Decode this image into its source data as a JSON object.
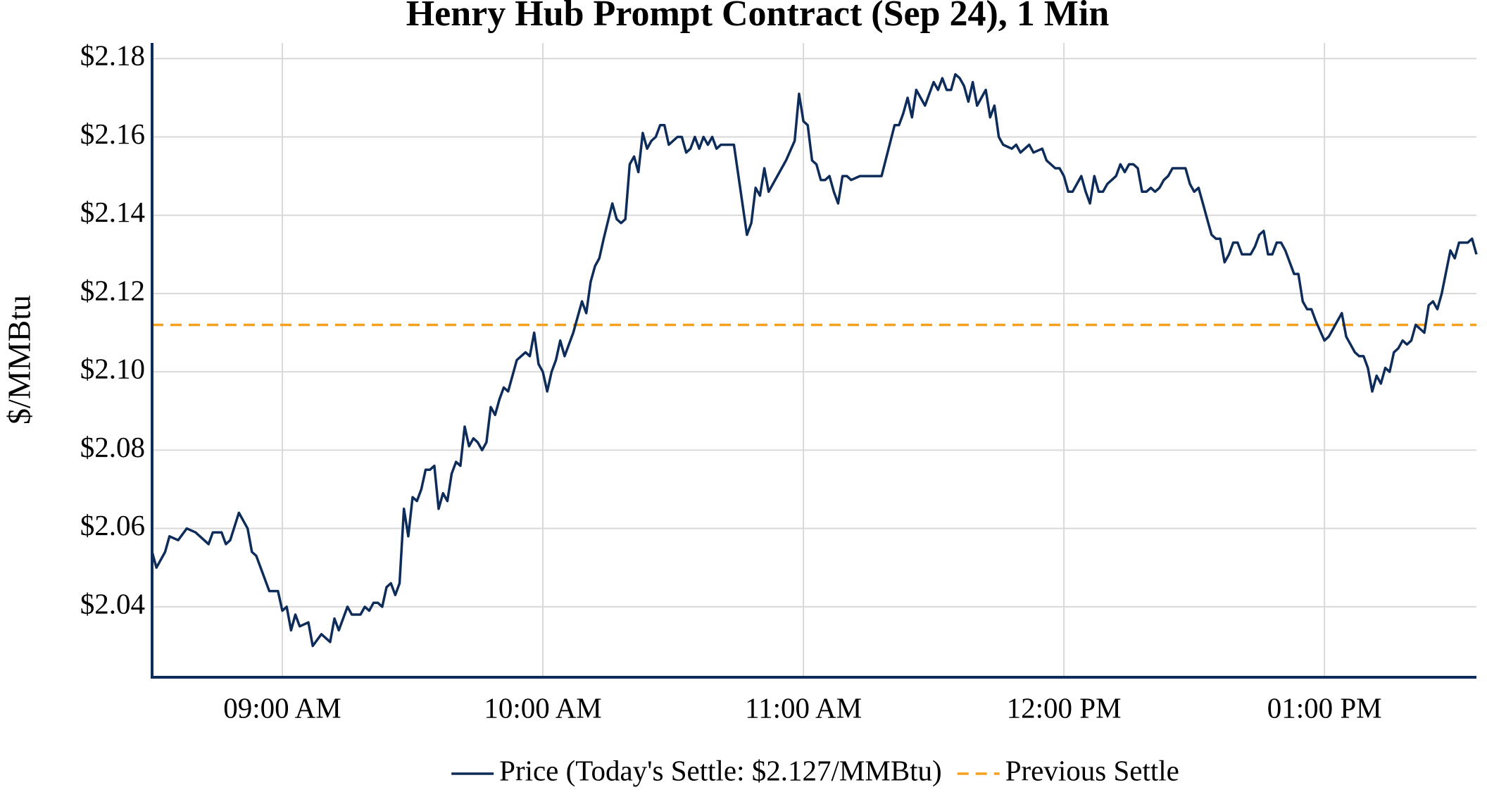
{
  "chart_data": {
    "type": "line",
    "title": "Henry Hub Prompt Contract (Sep 24), 1 Min",
    "y_label": "$/MMBtu",
    "xlim": [
      "08:30",
      "13:35"
    ],
    "xticks": [
      {
        "value": "09:00",
        "label": "09:00 AM"
      },
      {
        "value": "10:00",
        "label": "10:00 AM"
      },
      {
        "value": "11:00",
        "label": "11:00 AM"
      },
      {
        "value": "12:00",
        "label": "12:00 PM"
      },
      {
        "value": "13:00",
        "label": "01:00 PM"
      }
    ],
    "ylim": [
      2.022,
      2.184
    ],
    "yticks": [
      {
        "value": 2.04,
        "label": "$2.04"
      },
      {
        "value": 2.06,
        "label": "$2.06"
      },
      {
        "value": 2.08,
        "label": "$2.08"
      },
      {
        "value": 2.1,
        "label": "$2.10"
      },
      {
        "value": 2.12,
        "label": "$2.12"
      },
      {
        "value": 2.14,
        "label": "$2.14"
      },
      {
        "value": 2.16,
        "label": "$2.16"
      },
      {
        "value": 2.18,
        "label": "$2.18"
      }
    ],
    "grid": true,
    "legend": "bottom",
    "x": [
      "08:30",
      "08:31",
      "08:33",
      "08:34",
      "08:36",
      "08:38",
      "08:40",
      "08:42",
      "08:43",
      "08:44",
      "08:46",
      "08:47",
      "08:48",
      "08:50",
      "08:52",
      "08:53",
      "08:54",
      "08:57",
      "08:59",
      "09:00",
      "09:01",
      "09:02",
      "09:03",
      "09:04",
      "09:06",
      "09:07",
      "09:09",
      "09:11",
      "09:12",
      "09:13",
      "09:15",
      "09:16",
      "09:18",
      "09:19",
      "09:20",
      "09:21",
      "09:22",
      "09:23",
      "09:24",
      "09:25",
      "09:26",
      "09:27",
      "09:28",
      "09:29",
      "09:30",
      "09:31",
      "09:32",
      "09:33",
      "09:34",
      "09:35",
      "09:36",
      "09:37",
      "09:38",
      "09:39",
      "09:40",
      "09:41",
      "09:42",
      "09:43",
      "09:44",
      "09:45",
      "09:46",
      "09:47",
      "09:48",
      "09:49",
      "09:50",
      "09:51",
      "09:52",
      "09:54",
      "09:56",
      "09:57",
      "09:58",
      "09:59",
      "10:00",
      "10:01",
      "10:02",
      "10:03",
      "10:04",
      "10:05",
      "10:07",
      "10:09",
      "10:10",
      "10:11",
      "10:12",
      "10:13",
      "10:14",
      "10:16",
      "10:17",
      "10:18",
      "10:19",
      "10:20",
      "10:21",
      "10:22",
      "10:23",
      "10:24",
      "10:25",
      "10:26",
      "10:27",
      "10:28",
      "10:29",
      "10:31",
      "10:32",
      "10:33",
      "10:34",
      "10:35",
      "10:36",
      "10:37",
      "10:38",
      "10:39",
      "10:40",
      "10:41",
      "10:42",
      "10:44",
      "10:47",
      "10:48",
      "10:49",
      "10:50",
      "10:51",
      "10:52",
      "10:56",
      "10:58",
      "10:59",
      "11:00",
      "11:01",
      "11:02",
      "11:03",
      "11:04",
      "11:05",
      "11:06",
      "11:07",
      "11:08",
      "11:09",
      "11:10",
      "11:11",
      "11:13",
      "11:18",
      "11:21",
      "11:22",
      "11:23",
      "11:24",
      "11:25",
      "11:26",
      "11:27",
      "11:28",
      "11:29",
      "11:30",
      "11:31",
      "11:32",
      "11:33",
      "11:34",
      "11:35",
      "11:36",
      "11:37",
      "11:38",
      "11:39",
      "11:40",
      "11:41",
      "11:42",
      "11:43",
      "11:44",
      "11:45",
      "11:46",
      "11:48",
      "11:49",
      "11:50",
      "11:52",
      "11:53",
      "11:55",
      "11:56",
      "11:57",
      "11:58",
      "11:59",
      "12:00",
      "12:01",
      "12:02",
      "12:03",
      "12:04",
      "12:05",
      "12:06",
      "12:07",
      "12:08",
      "12:09",
      "12:10",
      "12:11",
      "12:12",
      "12:13",
      "12:14",
      "12:15",
      "12:16",
      "12:17",
      "12:18",
      "12:19",
      "12:20",
      "12:21",
      "12:22",
      "12:23",
      "12:24",
      "12:25",
      "12:28",
      "12:29",
      "12:30",
      "12:31",
      "12:32",
      "12:33",
      "12:34",
      "12:35",
      "12:36",
      "12:37",
      "12:38",
      "12:39",
      "12:40",
      "12:41",
      "12:43",
      "12:44",
      "12:45",
      "12:46",
      "12:47",
      "12:48",
      "12:49",
      "12:50",
      "12:51",
      "12:52",
      "12:53",
      "12:54",
      "12:55",
      "12:56",
      "12:57",
      "12:58",
      "13:00",
      "13:01",
      "13:02",
      "13:03",
      "13:04",
      "13:05",
      "13:06",
      "13:07",
      "13:08",
      "13:09",
      "13:10",
      "13:11",
      "13:12",
      "13:13",
      "13:14",
      "13:15",
      "13:16",
      "13:17",
      "13:18",
      "13:19",
      "13:20",
      "13:21",
      "13:22",
      "13:23",
      "13:24",
      "13:25",
      "13:26",
      "13:27",
      "13:29",
      "13:30",
      "13:31",
      "13:32",
      "13:33",
      "13:34",
      "13:35"
    ],
    "series": [
      {
        "name": "Price (Today's Settle: $2.127/MMBtu)",
        "color": "#0d2c5a",
        "values": [
          2.054,
          2.05,
          2.054,
          2.058,
          2.057,
          2.06,
          2.059,
          2.057,
          2.056,
          2.059,
          2.059,
          2.056,
          2.057,
          2.064,
          2.06,
          2.054,
          2.053,
          2.044,
          2.044,
          2.039,
          2.04,
          2.034,
          2.038,
          2.035,
          2.036,
          2.03,
          2.033,
          2.031,
          2.037,
          2.034,
          2.04,
          2.038,
          2.038,
          2.04,
          2.039,
          2.041,
          2.041,
          2.04,
          2.045,
          2.046,
          2.043,
          2.046,
          2.065,
          2.058,
          2.068,
          2.067,
          2.07,
          2.075,
          2.075,
          2.076,
          2.065,
          2.069,
          2.067,
          2.074,
          2.077,
          2.076,
          2.086,
          2.081,
          2.083,
          2.082,
          2.08,
          2.082,
          2.091,
          2.089,
          2.093,
          2.096,
          2.095,
          2.103,
          2.105,
          2.104,
          2.11,
          2.102,
          2.1,
          2.095,
          2.1,
          2.103,
          2.108,
          2.104,
          2.11,
          2.118,
          2.115,
          2.123,
          2.127,
          2.129,
          2.134,
          2.143,
          2.139,
          2.138,
          2.139,
          2.153,
          2.155,
          2.151,
          2.161,
          2.157,
          2.159,
          2.16,
          2.163,
          2.163,
          2.158,
          2.16,
          2.16,
          2.156,
          2.157,
          2.16,
          2.157,
          2.16,
          2.158,
          2.16,
          2.157,
          2.158,
          2.158,
          2.158,
          2.135,
          2.138,
          2.147,
          2.145,
          2.152,
          2.146,
          2.154,
          2.159,
          2.171,
          2.164,
          2.163,
          2.154,
          2.153,
          2.149,
          2.149,
          2.15,
          2.146,
          2.143,
          2.15,
          2.15,
          2.149,
          2.15,
          2.15,
          2.163,
          2.163,
          2.166,
          2.17,
          2.165,
          2.172,
          2.17,
          2.168,
          2.171,
          2.174,
          2.172,
          2.175,
          2.172,
          2.172,
          2.176,
          2.175,
          2.173,
          2.169,
          2.174,
          2.168,
          2.17,
          2.172,
          2.165,
          2.168,
          2.16,
          2.158,
          2.157,
          2.158,
          2.156,
          2.158,
          2.156,
          2.157,
          2.154,
          2.153,
          2.152,
          2.152,
          2.15,
          2.146,
          2.146,
          2.148,
          2.15,
          2.146,
          2.143,
          2.15,
          2.146,
          2.146,
          2.148,
          2.149,
          2.15,
          2.153,
          2.151,
          2.153,
          2.153,
          2.152,
          2.146,
          2.146,
          2.147,
          2.146,
          2.147,
          2.149,
          2.15,
          2.152,
          2.152,
          2.148,
          2.146,
          2.147,
          2.143,
          2.139,
          2.135,
          2.134,
          2.134,
          2.128,
          2.13,
          2.133,
          2.133,
          2.13,
          2.13,
          2.132,
          2.135,
          2.136,
          2.13,
          2.13,
          2.133,
          2.133,
          2.131,
          2.128,
          2.125,
          2.125,
          2.118,
          2.116,
          2.116,
          2.113,
          2.108,
          2.109,
          2.111,
          2.113,
          2.115,
          2.109,
          2.107,
          2.105,
          2.104,
          2.104,
          2.101,
          2.095,
          2.099,
          2.097,
          2.101,
          2.1,
          2.105,
          2.106,
          2.108,
          2.107,
          2.108,
          2.112,
          2.111,
          2.11,
          2.117,
          2.118,
          2.116,
          2.12,
          2.131,
          2.129,
          2.133,
          2.133,
          2.133,
          2.134,
          2.13
        ]
      }
    ],
    "reference_line": {
      "name": "Previous Settle",
      "color": "#f5a01e",
      "value": 2.112,
      "dashed": true
    }
  }
}
